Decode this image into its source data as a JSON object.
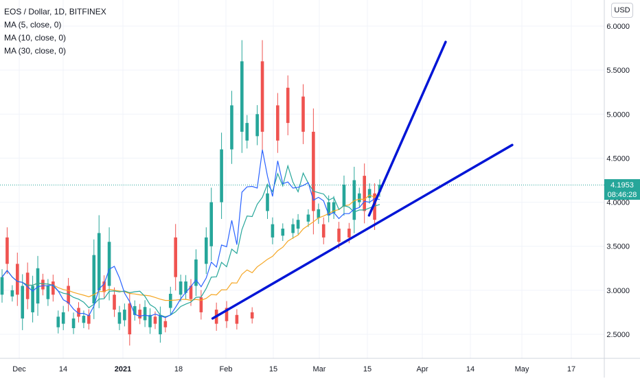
{
  "legend": {
    "symbol": "EOS / Dollar, 1D, BITFINEX",
    "ma1": "MA (5, close, 0)",
    "ma2": "MA (10, close, 0)",
    "ma3": "MA (30, close, 0)"
  },
  "currency": "USD",
  "last_price": {
    "value": "4.1953",
    "countdown": "08:46:28"
  },
  "colors": {
    "up": "#26a69a",
    "down": "#ef5350",
    "ma5": "#2962ff",
    "ma10": "#26a69a",
    "ma30": "#f5a623",
    "trendline": "#0015d6",
    "grid": "#f0f3fa"
  },
  "chart_data": {
    "type": "candlestick",
    "title": "EOS / Dollar, 1D, BITFINEX",
    "ylim": [
      2.4,
      6.2
    ],
    "y_ticks": [
      "6.0000",
      "5.5000",
      "5.0000",
      "4.5000",
      "4.0000",
      "3.5000",
      "3.0000",
      "2.5000"
    ],
    "x_ticks": [
      "Dec",
      "14",
      "2021",
      "18",
      "Feb",
      "15",
      "Mar",
      "15",
      "Apr",
      "14",
      "May",
      "17"
    ],
    "bull_bodies": [
      [
        2.95,
        3.15
      ],
      [
        2.93,
        3.0
      ],
      [
        2.68,
        3.05
      ],
      [
        2.75,
        3.05
      ],
      [
        2.85,
        3.25
      ],
      [
        2.9,
        3.05
      ],
      [
        2.58,
        2.7
      ],
      [
        2.62,
        2.75
      ],
      [
        2.57,
        2.68
      ],
      [
        2.63,
        2.71
      ],
      [
        2.85,
        3.4
      ],
      [
        3.0,
        3.65
      ],
      [
        3.05,
        3.55
      ],
      [
        2.62,
        2.75
      ],
      [
        2.66,
        2.78
      ],
      [
        2.72,
        2.82
      ],
      [
        2.66,
        2.81
      ],
      [
        2.58,
        2.72
      ],
      [
        2.5,
        2.72
      ],
      [
        2.8,
        2.96
      ],
      [
        2.95,
        3.1
      ],
      [
        2.97,
        3.1
      ],
      [
        3.05,
        3.35
      ],
      [
        3.3,
        3.6
      ],
      [
        3.5,
        4.0
      ],
      [
        4.0,
        4.6
      ],
      [
        4.6,
        5.1
      ],
      [
        4.8,
        5.6
      ],
      [
        4.7,
        4.9
      ],
      [
        4.75,
        5.0
      ],
      [
        3.9,
        4.1
      ],
      [
        3.6,
        3.75
      ],
      [
        3.62,
        3.7
      ],
      [
        3.65,
        3.75
      ],
      [
        3.7,
        3.8
      ],
      [
        3.78,
        3.86
      ],
      [
        3.82,
        3.92
      ],
      [
        3.85,
        4.0
      ],
      [
        3.88,
        4.0
      ],
      [
        3.95,
        4.2
      ],
      [
        3.8,
        4.25
      ],
      [
        4.0,
        4.1
      ],
      [
        4.05,
        4.15
      ],
      [
        4.12,
        4.2
      ]
    ],
    "bear_bodies": [
      [
        3.6,
        3.3
      ],
      [
        3.3,
        2.95
      ],
      [
        3.2,
        2.9
      ],
      [
        3.12,
        3.01
      ],
      [
        3.1,
        2.95
      ],
      [
        3.05,
        2.85
      ],
      [
        2.8,
        2.7
      ],
      [
        2.72,
        2.62
      ],
      [
        3.1,
        2.98
      ],
      [
        2.95,
        2.78
      ],
      [
        2.85,
        2.5
      ],
      [
        2.78,
        2.68
      ],
      [
        2.7,
        2.62
      ],
      [
        2.65,
        2.58
      ],
      [
        3.6,
        3.15
      ],
      [
        3.05,
        2.9
      ],
      [
        2.92,
        2.75
      ],
      [
        2.78,
        2.62
      ],
      [
        2.8,
        2.65
      ],
      [
        2.72,
        2.62
      ],
      [
        2.75,
        2.68
      ],
      [
        5.6,
        4.8
      ],
      [
        5.1,
        4.7
      ],
      [
        5.3,
        4.9
      ],
      [
        5.2,
        4.8
      ],
      [
        4.8,
        3.9
      ],
      [
        3.75,
        3.6
      ],
      [
        3.7,
        3.55
      ],
      [
        3.7,
        3.6
      ],
      [
        4.3,
        3.9
      ],
      [
        4.1,
        3.8
      ]
    ],
    "trendlines": [
      {
        "from": [
          "2021-01-28",
          2.68
        ],
        "to": [
          "2021-04-28",
          4.65
        ]
      },
      {
        "from": [
          "2021-03-16",
          3.85
        ],
        "to": [
          "2021-04-08",
          5.82
        ]
      }
    ],
    "last_price": 4.1953
  }
}
